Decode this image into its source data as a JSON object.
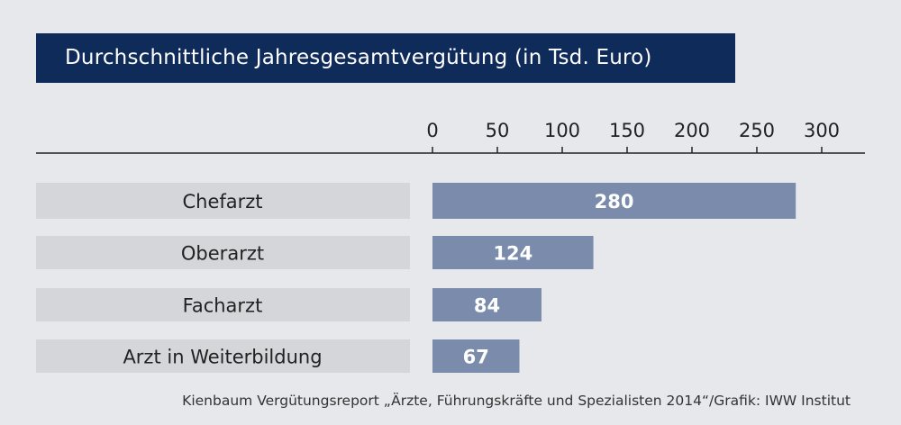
{
  "chart_data": {
    "type": "bar",
    "orientation": "horizontal",
    "title": "Durchschnittliche Jahresgesamtvergütung (in Tsd. Euro)",
    "categories": [
      "Chefarzt",
      "Oberarzt",
      "Facharzt",
      "Arzt in Weiterbildung"
    ],
    "values": [
      280,
      124,
      84,
      67
    ],
    "data_labels": [
      "280",
      "124",
      "84",
      "67"
    ],
    "xlim": [
      0,
      300
    ],
    "x_ticks": [
      0,
      50,
      100,
      150,
      200,
      250,
      300
    ],
    "x_tick_labels": [
      "0",
      "50",
      "100",
      "150",
      "200",
      "250",
      "300"
    ],
    "axis_position": "top",
    "grid": false,
    "source": "Kienbaum Vergütungsreport „Ärzte, Führungskräfte und Spezialisten 2014“/Grafik: IWW Institut",
    "colors": {
      "bar": "#7a8bac",
      "label_box": "#d4d6da",
      "title_bg": "#0e2b5a",
      "background": "#e6e8eb"
    }
  }
}
